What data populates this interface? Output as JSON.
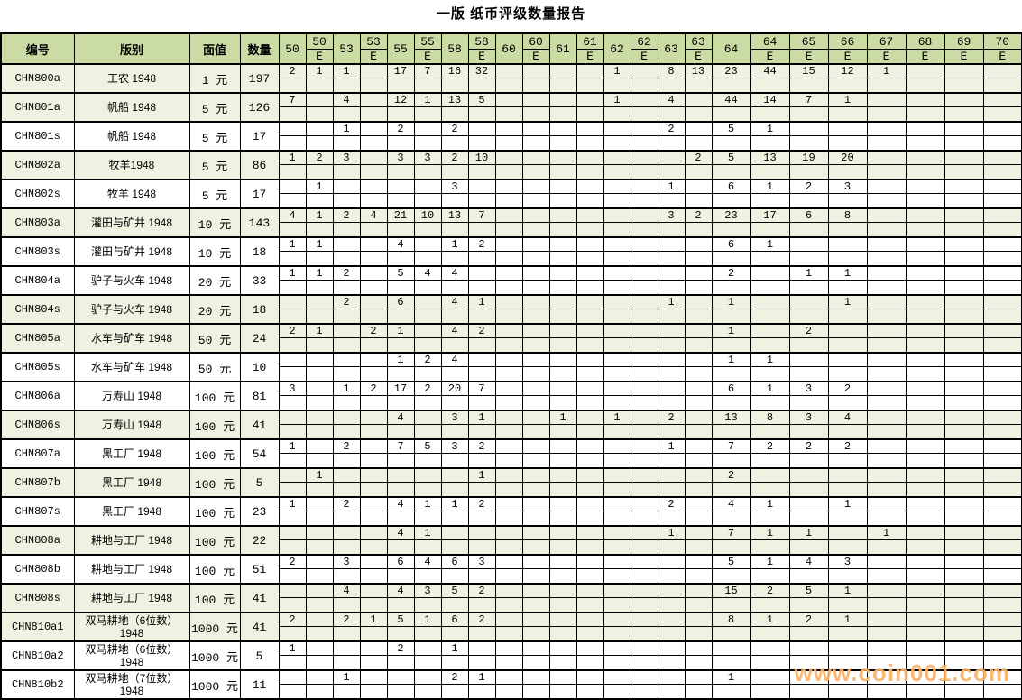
{
  "title": "一版 纸币评级数量报告",
  "watermark": "www.coin001.com",
  "colors": {
    "header_bg": "#cadca3",
    "row_shaded": "#f0f1e0",
    "row_plain": "#ffffff",
    "border": "#000000",
    "watermark": "#fbb169",
    "title_text": "#000000"
  },
  "table": {
    "left_headers": [
      "编号",
      "版别",
      "面值",
      "数量"
    ],
    "left_col_widths": [
      81,
      128,
      56,
      43
    ],
    "narrow_col_width": 30,
    "wide_col_width": 43,
    "e_suffix": "E",
    "grade_columns": [
      {
        "key": "50",
        "label": "50",
        "e": false,
        "wide": false
      },
      {
        "key": "50E",
        "label": "50",
        "e": true,
        "wide": false
      },
      {
        "key": "53",
        "label": "53",
        "e": false,
        "wide": false
      },
      {
        "key": "53E",
        "label": "53",
        "e": true,
        "wide": false
      },
      {
        "key": "55",
        "label": "55",
        "e": false,
        "wide": false
      },
      {
        "key": "55E",
        "label": "55",
        "e": true,
        "wide": false
      },
      {
        "key": "58",
        "label": "58",
        "e": false,
        "wide": false
      },
      {
        "key": "58E",
        "label": "58",
        "e": true,
        "wide": false
      },
      {
        "key": "60",
        "label": "60",
        "e": false,
        "wide": false
      },
      {
        "key": "60E",
        "label": "60",
        "e": true,
        "wide": false
      },
      {
        "key": "61",
        "label": "61",
        "e": false,
        "wide": false
      },
      {
        "key": "61E",
        "label": "61",
        "e": true,
        "wide": false
      },
      {
        "key": "62",
        "label": "62",
        "e": false,
        "wide": false
      },
      {
        "key": "62E",
        "label": "62",
        "e": true,
        "wide": false
      },
      {
        "key": "63",
        "label": "63",
        "e": false,
        "wide": false
      },
      {
        "key": "63E",
        "label": "63",
        "e": true,
        "wide": false
      },
      {
        "key": "64",
        "label": "64",
        "e": false,
        "wide": true
      },
      {
        "key": "64E",
        "label": "64",
        "e": true,
        "wide": true
      },
      {
        "key": "65E",
        "label": "65",
        "e": true,
        "wide": true
      },
      {
        "key": "66E",
        "label": "66",
        "e": true,
        "wide": true
      },
      {
        "key": "67E",
        "label": "67",
        "e": true,
        "wide": true
      },
      {
        "key": "68E",
        "label": "68",
        "e": true,
        "wide": true
      },
      {
        "key": "69E",
        "label": "69",
        "e": true,
        "wide": true
      },
      {
        "key": "70E",
        "label": "70",
        "e": true,
        "wide": true
      }
    ],
    "rows": [
      {
        "code": "CHN800a",
        "name_lines": [
          "工农 1948"
        ],
        "denom": "1 元",
        "qty": "197",
        "shaded": true,
        "grades": {
          "50": "2",
          "50E": "1",
          "53": "1",
          "55": "17",
          "55E": "7",
          "58": "16",
          "58E": "32",
          "62": "1",
          "63": "8",
          "63E": "13",
          "64": "23",
          "64E": "44",
          "65E": "15",
          "66E": "12",
          "67E": "1"
        }
      },
      {
        "code": "CHN801a",
        "name_lines": [
          "帆船 1948"
        ],
        "denom": "5 元",
        "qty": "126",
        "shaded": true,
        "grades": {
          "50": "7",
          "53": "4",
          "55": "12",
          "55E": "1",
          "58": "13",
          "58E": "5",
          "62": "1",
          "63": "4",
          "64": "44",
          "64E": "14",
          "65E": "7",
          "66E": "1"
        }
      },
      {
        "code": "CHN801s",
        "name_lines": [
          "帆船 1948"
        ],
        "denom": "5 元",
        "qty": "17",
        "shaded": false,
        "grades": {
          "53": "1",
          "55": "2",
          "58": "2",
          "63": "2",
          "64": "5",
          "64E": "1"
        }
      },
      {
        "code": "CHN802a",
        "name_lines": [
          "牧羊1948"
        ],
        "denom": "5 元",
        "qty": "86",
        "shaded": true,
        "grades": {
          "50": "1",
          "50E": "2",
          "53": "3",
          "55": "3",
          "55E": "3",
          "58": "2",
          "58E": "10",
          "63E": "2",
          "64": "5",
          "64E": "13",
          "65E": "19",
          "66E": "20"
        }
      },
      {
        "code": "CHN802s",
        "name_lines": [
          "牧羊 1948"
        ],
        "denom": "5 元",
        "qty": "17",
        "shaded": false,
        "grades": {
          "50E": "1",
          "58": "3",
          "63": "1",
          "64": "6",
          "64E": "1",
          "65E": "2",
          "66E": "3"
        }
      },
      {
        "code": "CHN803a",
        "name_lines": [
          "灌田与矿井 1948"
        ],
        "denom": "10 元",
        "qty": "143",
        "shaded": true,
        "grades": {
          "50": "4",
          "50E": "1",
          "53": "2",
          "53E": "4",
          "55": "21",
          "55E": "10",
          "58": "13",
          "58E": "7",
          "63": "3",
          "63E": "2",
          "64": "23",
          "64E": "17",
          "65E": "6",
          "66E": "8"
        }
      },
      {
        "code": "CHN803s",
        "name_lines": [
          "灌田与矿井 1948"
        ],
        "denom": "10 元",
        "qty": "18",
        "shaded": false,
        "grades": {
          "50": "1",
          "50E": "1",
          "55": "4",
          "58": "1",
          "58E": "2",
          "64": "6",
          "64E": "1"
        }
      },
      {
        "code": "CHN804a",
        "name_lines": [
          "驴子与火车 1948"
        ],
        "denom": "20 元",
        "qty": "33",
        "shaded": false,
        "grades": {
          "50": "1",
          "50E": "1",
          "53": "2",
          "55": "5",
          "55E": "4",
          "58": "4",
          "64": "2",
          "65E": "1",
          "66E": "1"
        }
      },
      {
        "code": "CHN804s",
        "name_lines": [
          "驴子与火车 1948"
        ],
        "denom": "20 元",
        "qty": "18",
        "shaded": true,
        "grades": {
          "53": "2",
          "55": "6",
          "58": "4",
          "58E": "1",
          "63": "1",
          "64": "1",
          "66E": "1"
        }
      },
      {
        "code": "CHN805a",
        "name_lines": [
          "水车与矿车 1948"
        ],
        "denom": "50 元",
        "qty": "24",
        "shaded": true,
        "grades": {
          "50": "2",
          "50E": "1",
          "53E": "2",
          "55": "1",
          "58": "4",
          "58E": "2",
          "64": "1",
          "65E": "2"
        }
      },
      {
        "code": "CHN805s",
        "name_lines": [
          "水车与矿车 1948"
        ],
        "denom": "50 元",
        "qty": "10",
        "shaded": false,
        "grades": {
          "55": "1",
          "55E": "2",
          "58": "4",
          "64": "1",
          "64E": "1"
        }
      },
      {
        "code": "CHN806a",
        "name_lines": [
          "万寿山 1948"
        ],
        "denom": "100 元",
        "qty": "81",
        "shaded": false,
        "grades": {
          "50": "3",
          "53": "1",
          "53E": "2",
          "55": "17",
          "55E": "2",
          "58": "20",
          "58E": "7",
          "64": "6",
          "64E": "1",
          "65E": "3",
          "66E": "2"
        }
      },
      {
        "code": "CHN806s",
        "name_lines": [
          "万寿山 1948"
        ],
        "denom": "100 元",
        "qty": "41",
        "shaded": true,
        "grades": {
          "55": "4",
          "58": "3",
          "58E": "1",
          "61": "1",
          "62": "1",
          "63": "2",
          "64": "13",
          "64E": "8",
          "65E": "3",
          "66E": "4"
        }
      },
      {
        "code": "CHN807a",
        "name_lines": [
          "黑工厂 1948"
        ],
        "denom": "100 元",
        "qty": "54",
        "shaded": false,
        "grades": {
          "50": "1",
          "53": "2",
          "55": "7",
          "55E": "5",
          "58": "3",
          "58E": "2",
          "63": "1",
          "64": "7",
          "64E": "2",
          "65E": "2",
          "66E": "2"
        }
      },
      {
        "code": "CHN807b",
        "name_lines": [
          "黑工厂 1948"
        ],
        "denom": "100 元",
        "qty": "5",
        "shaded": true,
        "grades": {
          "50E": "1",
          "58E": "1",
          "64": "2"
        }
      },
      {
        "code": "CHN807s",
        "name_lines": [
          "黑工厂 1948"
        ],
        "denom": "100 元",
        "qty": "23",
        "shaded": false,
        "grades": {
          "50": "1",
          "53": "2",
          "55": "4",
          "55E": "1",
          "58": "1",
          "58E": "2",
          "63": "2",
          "64": "4",
          "64E": "1",
          "66E": "1"
        }
      },
      {
        "code": "CHN808a",
        "name_lines": [
          "耕地与工厂 1948"
        ],
        "denom": "100 元",
        "qty": "22",
        "shaded": true,
        "grades": {
          "55": "4",
          "55E": "1",
          "63": "1",
          "64": "7",
          "64E": "1",
          "65E": "1",
          "67E": "1"
        }
      },
      {
        "code": "CHN808b",
        "name_lines": [
          "耕地与工厂 1948"
        ],
        "denom": "100 元",
        "qty": "51",
        "shaded": false,
        "grades": {
          "50": "2",
          "53": "3",
          "55": "6",
          "55E": "4",
          "58": "6",
          "58E": "3",
          "64": "5",
          "64E": "1",
          "65E": "4",
          "66E": "3"
        }
      },
      {
        "code": "CHN808s",
        "name_lines": [
          "耕地与工厂 1948"
        ],
        "denom": "100 元",
        "qty": "41",
        "shaded": true,
        "grades": {
          "53": "4",
          "55": "4",
          "55E": "3",
          "58": "5",
          "58E": "2",
          "64": "15",
          "64E": "2",
          "65E": "5",
          "66E": "1"
        }
      },
      {
        "code": "CHN810a1",
        "name_lines": [
          "双马耕地（6位数）",
          "1948"
        ],
        "denom": "1000 元",
        "qty": "41",
        "shaded": true,
        "grades": {
          "50": "2",
          "53": "2",
          "53E": "1",
          "55": "5",
          "55E": "1",
          "58": "6",
          "58E": "2",
          "64": "8",
          "64E": "1",
          "65E": "2",
          "66E": "1"
        }
      },
      {
        "code": "CHN810a2",
        "name_lines": [
          "双马耕地（6位数）",
          "1948"
        ],
        "denom": "1000 元",
        "qty": "5",
        "shaded": false,
        "grades": {
          "50": "1",
          "55": "2",
          "58": "1"
        }
      },
      {
        "code": "CHN810b2",
        "name_lines": [
          "双马耕地（7位数）",
          "1948"
        ],
        "denom": "1000 元",
        "qty": "11",
        "shaded": false,
        "grades": {
          "53": "1",
          "58": "2",
          "58E": "1",
          "64": "1"
        }
      }
    ]
  }
}
